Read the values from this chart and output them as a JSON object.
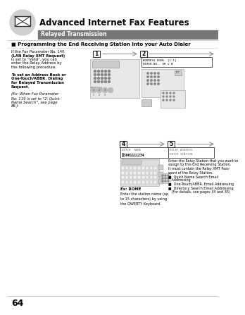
{
  "title": "Advanced Internet Fax Features",
  "subtitle": "Relayed Transmission",
  "section_header": "Programming the End Receiving Station into your Auto Dialer",
  "bg_color": "#ffffff",
  "subtitle_bg": "#777777",
  "subtitle_color": "#ffffff",
  "page_number": "64",
  "left_text": [
    [
      "If the Fax Parameter No. 140",
      false,
      false
    ],
    [
      "(LAN Relay XMT Request)",
      true,
      false
    ],
    [
      "is set to “Valid”, you can",
      false,
      false
    ],
    [
      "enter the Relay Address by",
      false,
      false
    ],
    [
      "the following procedure.",
      false,
      false
    ],
    [
      "",
      false,
      false
    ],
    [
      "To set an Address Book or",
      true,
      false
    ],
    [
      "One-Touch/ABBR. Dialing",
      true,
      false
    ],
    [
      "for Relayed Transmission",
      true,
      false
    ],
    [
      "Request.",
      true,
      false
    ],
    [
      "",
      false,
      false
    ],
    [
      "(Ex: When Fax Parameter",
      false,
      true
    ],
    [
      "No. 119 is set to “2: Quick",
      false,
      true
    ],
    [
      "Name Search”, see page",
      false,
      true
    ],
    [
      "86.)",
      false,
      true
    ]
  ],
  "box2_line1": "ADDRESS BOOK  [1-1]",
  "box2_line2": "ENTER NO.- OR v A",
  "box4_line1": "ENTER  NAME",
  "box4_line2": "▌3961111234",
  "box5_line1": "RELAY ADDRESS",
  "box5_line2": "ENTER STATION",
  "step4_caption": "Ex: ROME",
  "step4_text": "Enter the station name (up\nto 15 characters) by using\nthe QWERTY Keyboard.",
  "step5_texts": [
    "Enter the Relay Station that you want to",
    "assign to this End Receiving Station.",
    "It must contain the Relay XMT Pass-",
    "word of the Relay Station.",
    "■  Quick Name Search Email",
    "   Addressing",
    "■  One-Touch/ABBR. Email Addressing",
    "■  Directory Search Email Addressing",
    "   (For details, see pages 34 and 35)"
  ]
}
